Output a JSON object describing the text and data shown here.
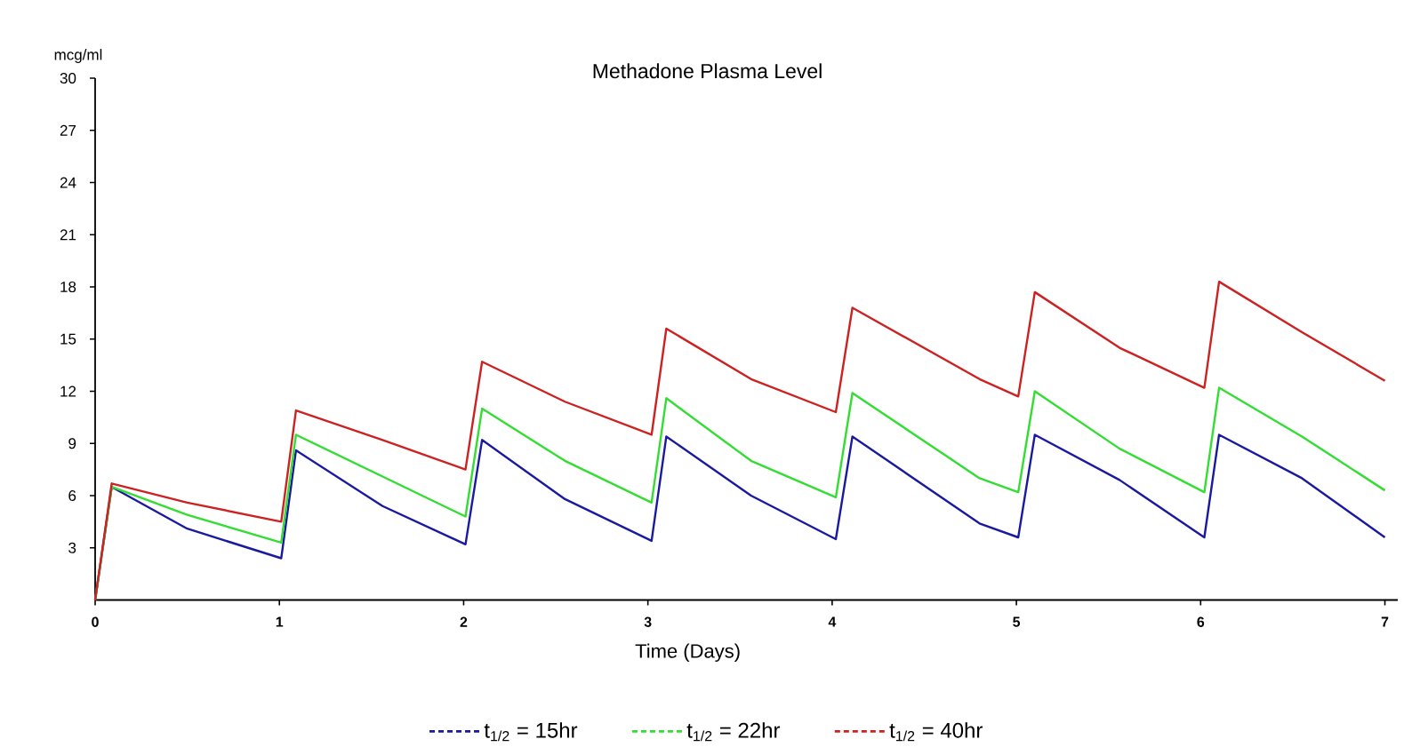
{
  "chart_data": {
    "type": "line",
    "title": "Methadone Plasma Level",
    "xlabel": "Time (Days)",
    "ylabel": "mcg/ml",
    "x": [
      0,
      0.09,
      0.5,
      1.01,
      1.09,
      1.56,
      2.01,
      2.1,
      2.55,
      3.02,
      3.1,
      3.56,
      4.02,
      4.11,
      4.8,
      5.01,
      5.1,
      5.56,
      6.02,
      6.1,
      6.55,
      7.0
    ],
    "series": [
      {
        "name": "t$_{1/2}$ = 15hr",
        "color": "#1a1aa0",
        "values": [
          0,
          6.5,
          4.1,
          2.4,
          8.6,
          5.4,
          3.2,
          9.2,
          5.8,
          3.4,
          9.4,
          6.0,
          3.5,
          9.4,
          4.4,
          3.6,
          9.5,
          6.9,
          3.6,
          9.5,
          7.0,
          3.6
        ]
      },
      {
        "name": "t$_{1/2}$ = 22hr",
        "color": "#33dd33",
        "values": [
          0,
          6.5,
          4.9,
          3.3,
          9.5,
          7.1,
          4.8,
          11.0,
          8.0,
          5.6,
          11.6,
          8.0,
          5.9,
          11.9,
          7.0,
          6.2,
          12.0,
          8.7,
          6.2,
          12.2,
          9.4,
          6.3
        ]
      },
      {
        "name": "t$_{1/2}$ = 40hr",
        "color": "#cc2222",
        "values": [
          0,
          6.7,
          5.6,
          4.5,
          10.9,
          9.2,
          7.5,
          13.7,
          11.4,
          9.5,
          15.6,
          12.7,
          10.8,
          16.8,
          12.7,
          11.7,
          17.7,
          14.5,
          12.2,
          18.3,
          15.4,
          12.6
        ]
      }
    ],
    "xlim": [
      0,
      7.07
    ],
    "ylim": [
      0,
      30
    ],
    "xticks": [
      0,
      1,
      2,
      3,
      4,
      5,
      6,
      7
    ],
    "yticks": [
      3,
      6,
      9,
      12,
      15,
      18,
      21,
      24,
      27,
      30
    ],
    "legend": "bottom",
    "marker": "none",
    "line_style": "solid",
    "grid": false
  }
}
